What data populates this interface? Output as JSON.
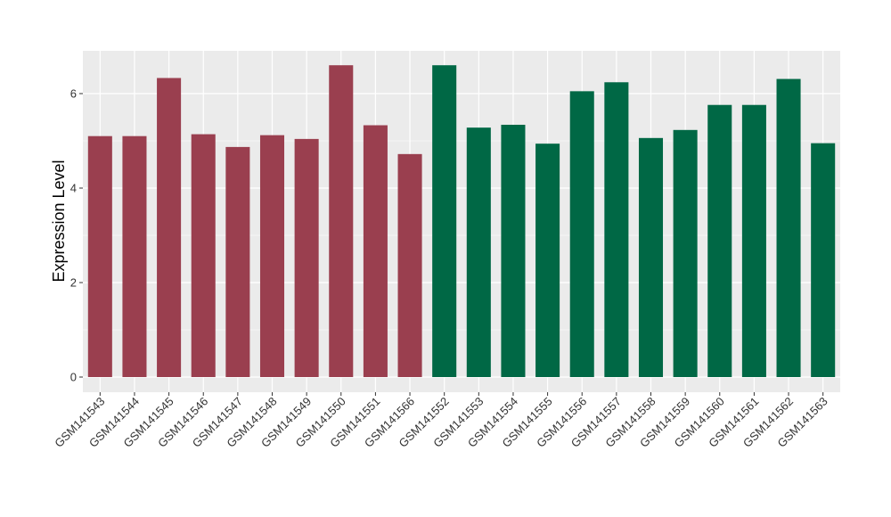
{
  "chart_data": {
    "type": "bar",
    "title": "",
    "xlabel": "",
    "ylabel": "Expression Level",
    "ylim": [
      0,
      6.9
    ],
    "yticks": [
      0,
      2,
      4,
      6
    ],
    "grid": true,
    "categories": [
      "GSM141543",
      "GSM141544",
      "GSM141545",
      "GSM141546",
      "GSM141547",
      "GSM141548",
      "GSM141549",
      "GSM141550",
      "GSM141551",
      "GSM141566",
      "GSM141552",
      "GSM141553",
      "GSM141554",
      "GSM141555",
      "GSM141556",
      "GSM141557",
      "GSM141558",
      "GSM141559",
      "GSM141560",
      "GSM141561",
      "GSM141562",
      "GSM141563"
    ],
    "values": [
      5.1,
      5.1,
      6.33,
      5.14,
      4.87,
      5.12,
      5.04,
      6.6,
      5.33,
      4.72,
      6.6,
      5.28,
      5.34,
      4.94,
      6.05,
      6.24,
      5.06,
      5.23,
      5.76,
      5.76,
      6.31,
      4.95
    ],
    "groups": [
      0,
      0,
      0,
      0,
      0,
      0,
      0,
      0,
      0,
      0,
      1,
      1,
      1,
      1,
      1,
      1,
      1,
      1,
      1,
      1,
      1,
      1
    ],
    "colors": {
      "group_0": "#9a3f4f",
      "group_1": "#006845",
      "panel_bg": "#ebebeb",
      "grid": "#ffffff"
    }
  }
}
